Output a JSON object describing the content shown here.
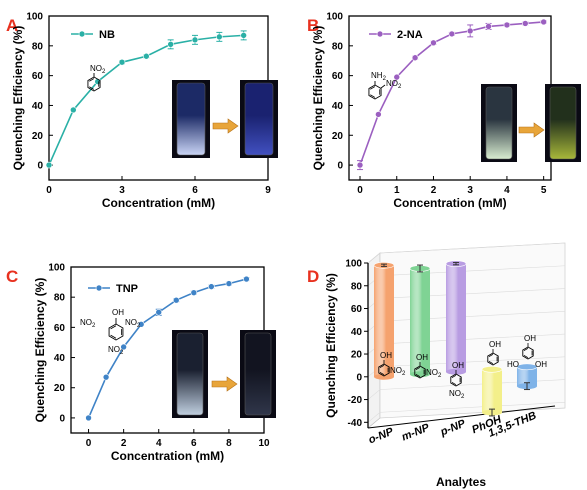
{
  "panel_letters": [
    "A",
    "B",
    "C",
    "D"
  ],
  "letter_color": "#e8311f",
  "chart_data": [
    {
      "type": "line",
      "panel": "A",
      "x": [
        0,
        1,
        2,
        3,
        4,
        5,
        6,
        7,
        8
      ],
      "series": [
        {
          "name": "NB",
          "values": [
            0,
            37,
            56,
            69,
            73,
            81,
            84,
            86,
            87
          ],
          "errors": [
            0,
            0,
            0,
            1,
            1,
            3,
            3,
            3,
            3
          ],
          "color": "#2ab0a6"
        }
      ],
      "xlabel": "Concentration (mM)",
      "ylabel": "Quenching Efficiency (%)",
      "xlim": [
        0,
        9
      ],
      "ylim": [
        -10,
        100
      ],
      "xticks": [
        "0",
        "3",
        "6",
        "9"
      ],
      "yticks": [
        "0",
        "20",
        "40",
        "60",
        "80",
        "100"
      ],
      "structure_labels": [
        "NO2"
      ]
    },
    {
      "type": "line",
      "panel": "B",
      "x": [
        0,
        0.5,
        1,
        1.5,
        2,
        2.5,
        3,
        3.5,
        4,
        4.5,
        5
      ],
      "series": [
        {
          "name": "2-NA",
          "values": [
            0,
            34,
            59,
            72,
            82,
            88,
            90,
            93,
            94,
            95,
            96
          ],
          "errors": [
            3,
            0,
            0,
            1,
            1,
            1,
            4,
            2,
            1,
            1,
            1
          ],
          "color": "#9b5fc0"
        }
      ],
      "xlabel": "Concentration (mM)",
      "ylabel": "Quenching Efficiency (%)",
      "xlim": [
        -0.3,
        5.2
      ],
      "ylim": [
        -10,
        100
      ],
      "xticks": [
        "0",
        "1",
        "2",
        "3",
        "4",
        "5"
      ],
      "yticks": [
        "0",
        "20",
        "40",
        "60",
        "80",
        "100"
      ],
      "structure_labels": [
        "NH2",
        "NO2"
      ]
    },
    {
      "type": "line",
      "panel": "C",
      "x": [
        0,
        1,
        2,
        3,
        4,
        5,
        6,
        7,
        8,
        9
      ],
      "series": [
        {
          "name": "TNP",
          "values": [
            0,
            27,
            47,
            62,
            70,
            78,
            83,
            87,
            89,
            92
          ],
          "errors": [
            0,
            0,
            0,
            0,
            2,
            1,
            1,
            1,
            1,
            1
          ],
          "color": "#3f83c7"
        }
      ],
      "xlabel": "Concentration (mM)",
      "ylabel": "Quenching Efficiency (%)",
      "xlim": [
        -1,
        10
      ],
      "ylim": [
        -10,
        100
      ],
      "xticks": [
        "0",
        "2",
        "4",
        "6",
        "8",
        "10"
      ],
      "yticks": [
        "0",
        "20",
        "40",
        "60",
        "80",
        "100"
      ],
      "structure_labels": [
        "OH",
        "NO2",
        "NO2",
        "NO2"
      ]
    },
    {
      "type": "bar",
      "panel": "D",
      "categories": [
        "o-NP",
        "m-NP",
        "p-NP",
        "PhOH",
        "1,3,5-THB"
      ],
      "values": [
        98,
        93,
        95,
        -38,
        -17
      ],
      "errors": [
        1,
        3,
        1,
        3,
        3
      ],
      "colors": [
        "#f5a26e",
        "#7fd394",
        "#b89ce2",
        "#f3ef8a",
        "#7fb3e8"
      ],
      "xlabel": "Analytes",
      "ylabel": "Quenching Efficiency (%)",
      "ylim": [
        -45,
        100
      ],
      "yticks": [
        "100",
        "80",
        "60",
        "40",
        "20",
        "0",
        "-20",
        "-40"
      ],
      "structure_labels": [
        [
          "OH",
          "NO2"
        ],
        [
          "OH",
          "NO2"
        ],
        [
          "OH",
          "NO2"
        ],
        [
          "OH"
        ],
        [
          "OH",
          "HO",
          "OH"
        ]
      ]
    }
  ]
}
